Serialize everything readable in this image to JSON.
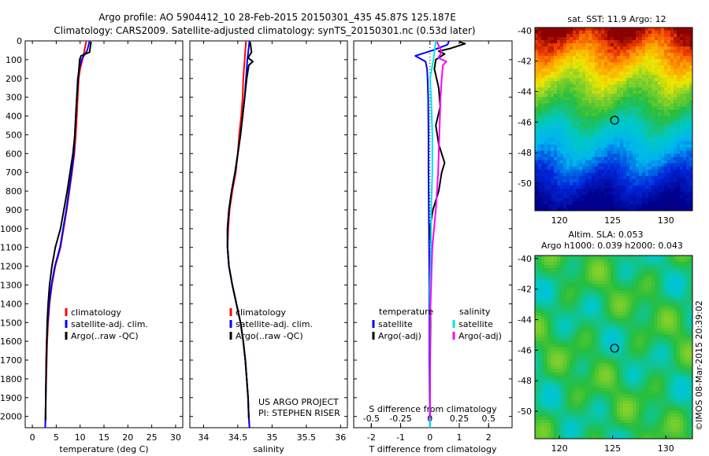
{
  "header": {
    "title_line1": "Argo profile: AO 5904412_10 28-Feb-2015 20150301_435 45.87S 125.187E",
    "title_line2": "Climatology: CARS2009. Satellite-adjusted climatology: synTS_20150301.nc (0.53d later)"
  },
  "colors": {
    "climatology": "#ff0000",
    "satellite": "#0000ff",
    "argo": "#000000",
    "sal_satellite": "#00e5e5",
    "sal_argo": "#ff00ff"
  },
  "depth_ticks": [
    "0",
    "100",
    "200",
    "300",
    "400",
    "500",
    "600",
    "700",
    "800",
    "900",
    "1000",
    "1100",
    "1200",
    "1300",
    "1400",
    "1500",
    "1600",
    "1700",
    "1800",
    "1900",
    "2000"
  ],
  "panels": {
    "temperature": {
      "xlabel": "temperature (deg C)",
      "xticks": [
        "0",
        "5",
        "10",
        "15",
        "20",
        "25",
        "30"
      ],
      "legend": [
        "climatology",
        "satellite-adj. clim.",
        "Argo(..raw -QC)"
      ]
    },
    "salinity": {
      "xlabel": "salinity",
      "xticks": [
        "34",
        "34.5",
        "35",
        "35.5",
        "36"
      ],
      "legend": [
        "climatology",
        "satellite-adj. clim.",
        "Argo(..raw -QC)"
      ],
      "credit_line1": "US ARGO PROJECT",
      "credit_line2": "PI: STEPHEN RISER"
    },
    "difference": {
      "xlabel": "T difference from climatology",
      "xticks": [
        "-2",
        "-1",
        "0",
        "1",
        "2"
      ],
      "s_label": "S difference from climatology",
      "s_ticks": [
        "-0.5",
        "-0.25",
        "0",
        "0.25",
        "0.5"
      ],
      "legend_t_title": "temperature",
      "legend_s_title": "salinity",
      "legend_t": [
        "satellite",
        "Argo(-adj)"
      ],
      "legend_s": [
        "satellite",
        "Argo(-adj)"
      ]
    }
  },
  "maps": {
    "sst_title": "sat. SST: 11.9 Argo: 12",
    "sla_title1": "Altim. SLA: 0.053",
    "sla_title2": "Argo h1000: 0.039 h2000: 0.043",
    "yticks": [
      "-40",
      "-42",
      "-44",
      "-46",
      "-48",
      "-50"
    ],
    "xticks": [
      "120",
      "125",
      "130"
    ],
    "float_position": "45.87S 125.187E"
  },
  "watermark": "©IMOS 08-Mar-2015 20:39:02",
  "chart_data": [
    {
      "type": "line",
      "title": "",
      "xlabel": "temperature (deg C)",
      "ylabel": "",
      "xlim": [
        -1.5,
        31.5
      ],
      "ylim": [
        2060,
        0
      ],
      "series": [
        {
          "name": "climatology",
          "x": [
            11.3,
            10.9,
            10.5,
            10.0,
            9.7,
            9.5,
            9.3,
            9.1,
            8.8,
            8.3,
            7.2,
            5.9,
            4.8,
            4.1,
            3.6,
            3.3,
            3.1,
            3.0,
            2.9,
            2.8,
            2.75,
            2.7,
            2.7
          ],
          "y": [
            0,
            50,
            100,
            150,
            200,
            300,
            400,
            500,
            600,
            700,
            900,
            1100,
            1200,
            1300,
            1400,
            1500,
            1600,
            1700,
            1800,
            1900,
            2000,
            2040,
            2060
          ]
        },
        {
          "name": "satellite-adj. clim.",
          "x": [
            12.0,
            11.5,
            10.3,
            9.8,
            9.5,
            9.3,
            9.1,
            8.9,
            8.7,
            8.2,
            7.1,
            5.8,
            4.7,
            4.0,
            3.5,
            3.2,
            3.0,
            2.9,
            2.85,
            2.8,
            2.75,
            2.7,
            2.7
          ],
          "y": [
            0,
            50,
            100,
            150,
            200,
            300,
            400,
            500,
            600,
            700,
            900,
            1100,
            1200,
            1300,
            1400,
            1500,
            1600,
            1700,
            1800,
            1900,
            2000,
            2040,
            2060
          ]
        },
        {
          "name": "Argo(..raw -QC)",
          "x": [
            12.3,
            12.1,
            12.0,
            10.2,
            9.9,
            9.6,
            9.3,
            9.1,
            8.9,
            8.5,
            7.3,
            5.9,
            4.8,
            4.1,
            3.6,
            3.3,
            3.1,
            3.0,
            2.9,
            2.85,
            2.8,
            2.75
          ],
          "y": [
            5,
            40,
            60,
            80,
            100,
            200,
            300,
            400,
            500,
            600,
            800,
            1000,
            1100,
            1200,
            1300,
            1400,
            1500,
            1600,
            1700,
            1800,
            1900,
            2020
          ]
        }
      ]
    },
    {
      "type": "line",
      "title": "",
      "xlabel": "salinity",
      "ylabel": "",
      "xlim": [
        33.8,
        36.1
      ],
      "ylim": [
        2060,
        0
      ],
      "series": [
        {
          "name": "climatology",
          "x": [
            34.62,
            34.6,
            34.58,
            34.57,
            34.55,
            34.52,
            34.5,
            34.47,
            34.42,
            34.38,
            34.36,
            34.35,
            34.37,
            34.42,
            34.48,
            34.54,
            34.58,
            34.61,
            34.63,
            34.65,
            34.66,
            34.67
          ],
          "y": [
            0,
            100,
            200,
            300,
            400,
            500,
            600,
            700,
            800,
            900,
            1000,
            1100,
            1200,
            1300,
            1400,
            1500,
            1600,
            1700,
            1800,
            1900,
            2000,
            2060
          ]
        },
        {
          "name": "satellite-adj. clim.",
          "x": [
            34.67,
            34.64,
            34.62,
            34.6,
            34.57,
            34.54,
            34.5,
            34.46,
            34.41,
            34.37,
            34.35,
            34.35,
            34.37,
            34.42,
            34.48,
            34.54,
            34.58,
            34.61,
            34.63,
            34.65,
            34.66,
            34.67
          ],
          "y": [
            0,
            100,
            200,
            300,
            400,
            500,
            600,
            700,
            800,
            900,
            1000,
            1100,
            1200,
            1300,
            1400,
            1500,
            1600,
            1700,
            1800,
            1900,
            2000,
            2060
          ]
        },
        {
          "name": "Argo(..raw -QC)",
          "x": [
            34.68,
            34.7,
            34.65,
            34.72,
            34.66,
            34.63,
            34.6,
            34.57,
            34.54,
            34.5,
            34.46,
            34.41,
            34.37,
            34.35,
            34.35,
            34.37,
            34.42,
            34.48,
            34.54,
            34.58,
            34.61,
            34.63,
            34.65,
            34.66
          ],
          "y": [
            5,
            60,
            90,
            110,
            130,
            200,
            300,
            400,
            500,
            600,
            700,
            800,
            900,
            1000,
            1100,
            1200,
            1300,
            1400,
            1500,
            1600,
            1700,
            1800,
            1900,
            2010
          ]
        }
      ]
    },
    {
      "type": "line",
      "title": "",
      "xlabel": "T difference from climatology",
      "ylabel": "",
      "xlim": [
        -2.6,
        2.8
      ],
      "ylim": [
        2060,
        0
      ],
      "series": [
        {
          "name": "temperature satellite",
          "x": [
            0.65,
            0.6,
            0.1,
            -0.5,
            -0.15,
            -0.1,
            -0.08,
            -0.06,
            -0.05,
            -0.05,
            -0.04,
            -0.03,
            -0.02,
            -0.02,
            -0.02,
            -0.01,
            0.0
          ],
          "y": [
            0,
            20,
            50,
            80,
            110,
            150,
            200,
            300,
            500,
            700,
            900,
            1100,
            1300,
            1500,
            1700,
            1900,
            2060
          ]
        },
        {
          "name": "temperature Argo(-adj)",
          "x": [
            1.0,
            1.2,
            0.7,
            0.3,
            0.5,
            0.2,
            0.15,
            0.3,
            0.35,
            0.2,
            0.3,
            0.5,
            0.4,
            0.3,
            0.1,
            0.0,
            0.05,
            0.0,
            0.02,
            0.01,
            0.0,
            0.01
          ],
          "y": [
            5,
            15,
            40,
            55,
            70,
            100,
            150,
            250,
            350,
            450,
            550,
            650,
            700,
            800,
            900,
            1000,
            1100,
            1300,
            1500,
            1700,
            1900,
            2010
          ]
        },
        {
          "name": "salinity satellite",
          "x": [
            0.05,
            0.04,
            0.03,
            0.0,
            0.01,
            0.02,
            0.02,
            0.01,
            0.01,
            0.0,
            0.0,
            0.0,
            0.0,
            0.0
          ],
          "y": [
            0,
            50,
            100,
            200,
            300,
            500,
            700,
            900,
            1100,
            1300,
            1500,
            1700,
            1900,
            2060
          ]
        },
        {
          "name": "salinity Argo(-adj)",
          "x": [
            0.06,
            0.1,
            0.07,
            0.14,
            0.11,
            0.1,
            0.09,
            0.08,
            0.07,
            0.05,
            0.02,
            0.01,
            0.0,
            0.0,
            0.0
          ],
          "y": [
            5,
            60,
            90,
            110,
            130,
            200,
            300,
            500,
            700,
            900,
            1100,
            1300,
            1500,
            1700,
            2010
          ]
        }
      ]
    }
  ]
}
